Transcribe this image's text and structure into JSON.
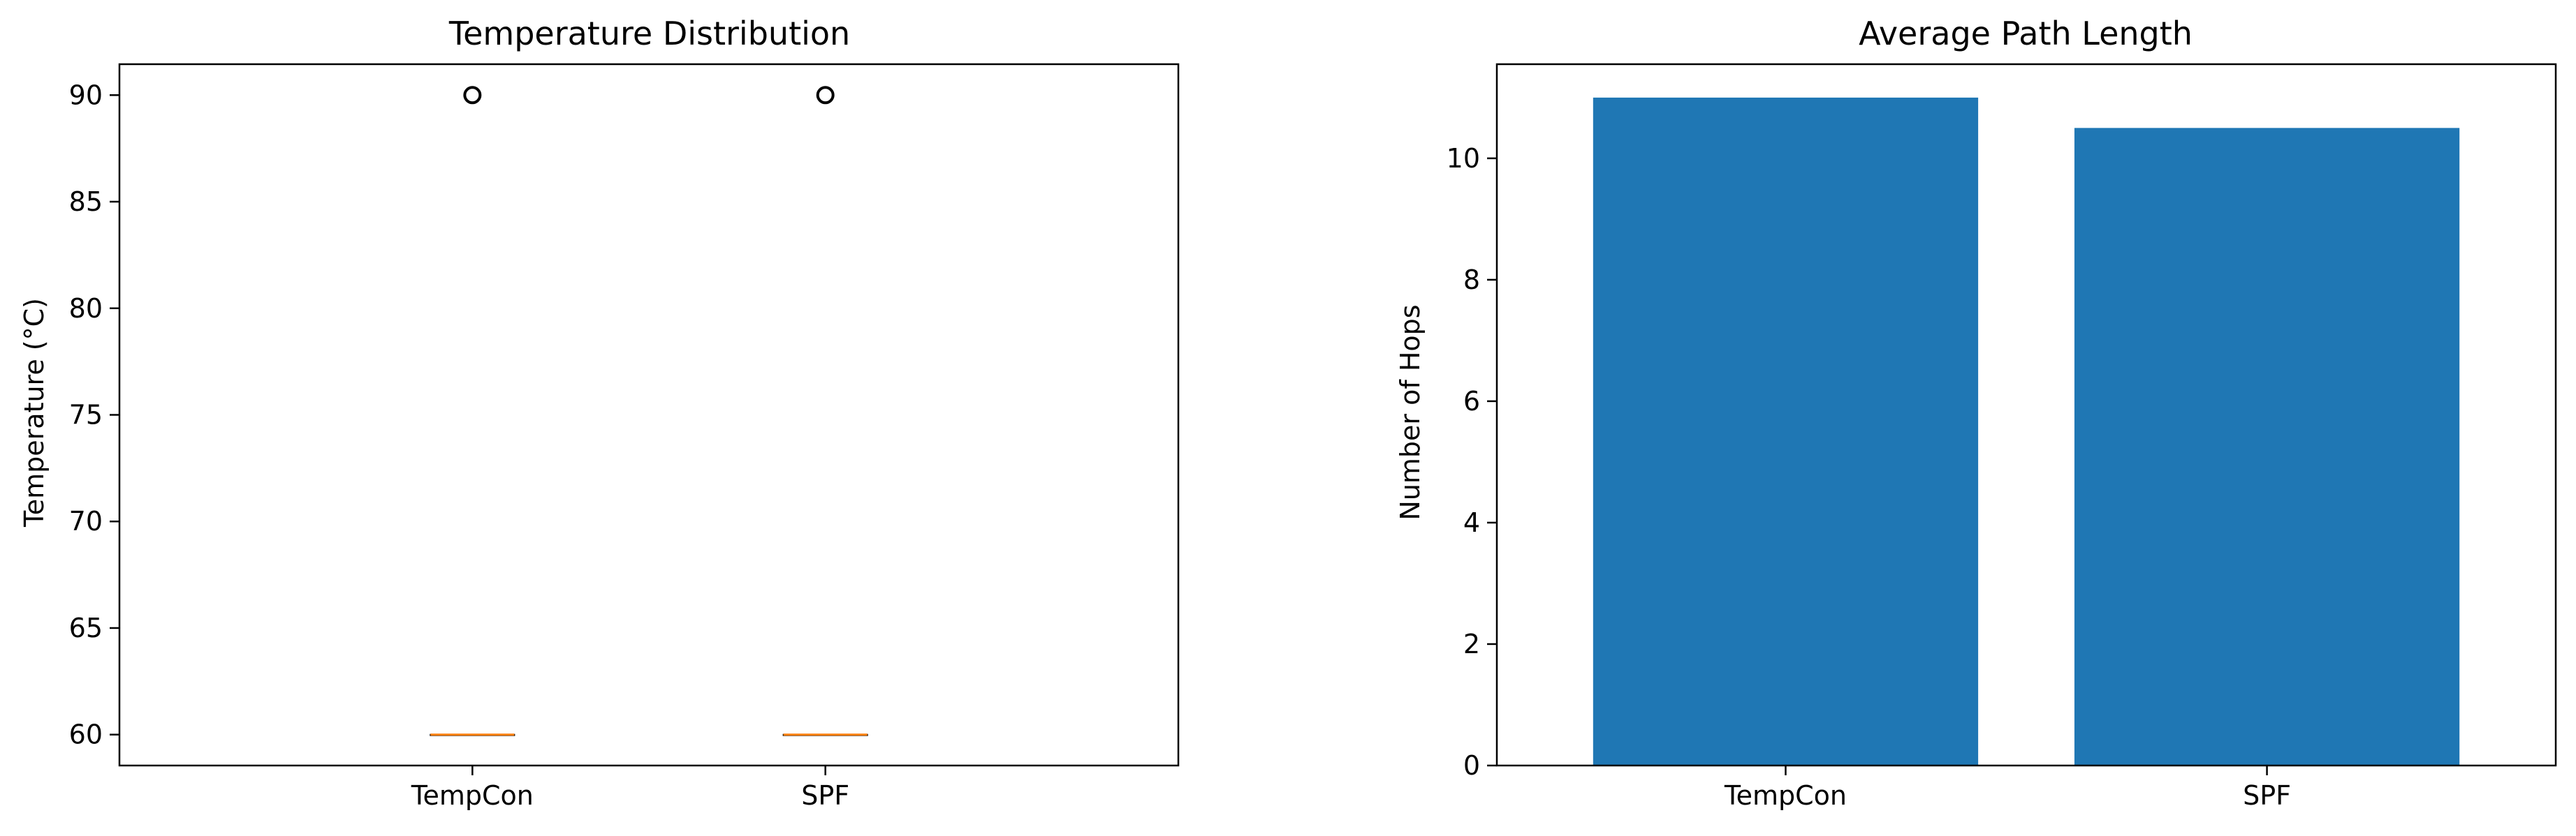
{
  "colors": {
    "bar": "#1f77b4",
    "median": "#ff7f0e",
    "axis": "#000000",
    "background": "#ffffff"
  },
  "chart_data": [
    {
      "type": "box",
      "title": "Temperature Distribution",
      "xlabel": "",
      "ylabel": "Temperature (°C)",
      "categories": [
        "TempCon",
        "SPF"
      ],
      "ylim": [
        58.55,
        91.45
      ],
      "yticks": [
        60,
        65,
        70,
        75,
        80,
        85,
        90
      ],
      "boxes": [
        {
          "category": "TempCon",
          "q1": 60,
          "median": 60,
          "q3": 60,
          "whisker_low": 60,
          "whisker_high": 60,
          "outliers": [
            90
          ]
        },
        {
          "category": "SPF",
          "q1": 60,
          "median": 60,
          "q3": 60,
          "whisker_low": 60,
          "whisker_high": 60,
          "outliers": [
            90
          ]
        }
      ],
      "grid": false
    },
    {
      "type": "bar",
      "title": "Average Path Length",
      "xlabel": "",
      "ylabel": "Number of Hops",
      "categories": [
        "TempCon",
        "SPF"
      ],
      "values": [
        11.0,
        10.5
      ],
      "ylim": [
        0,
        11.55
      ],
      "yticks": [
        0,
        2,
        4,
        6,
        8,
        10
      ],
      "grid": false
    }
  ]
}
